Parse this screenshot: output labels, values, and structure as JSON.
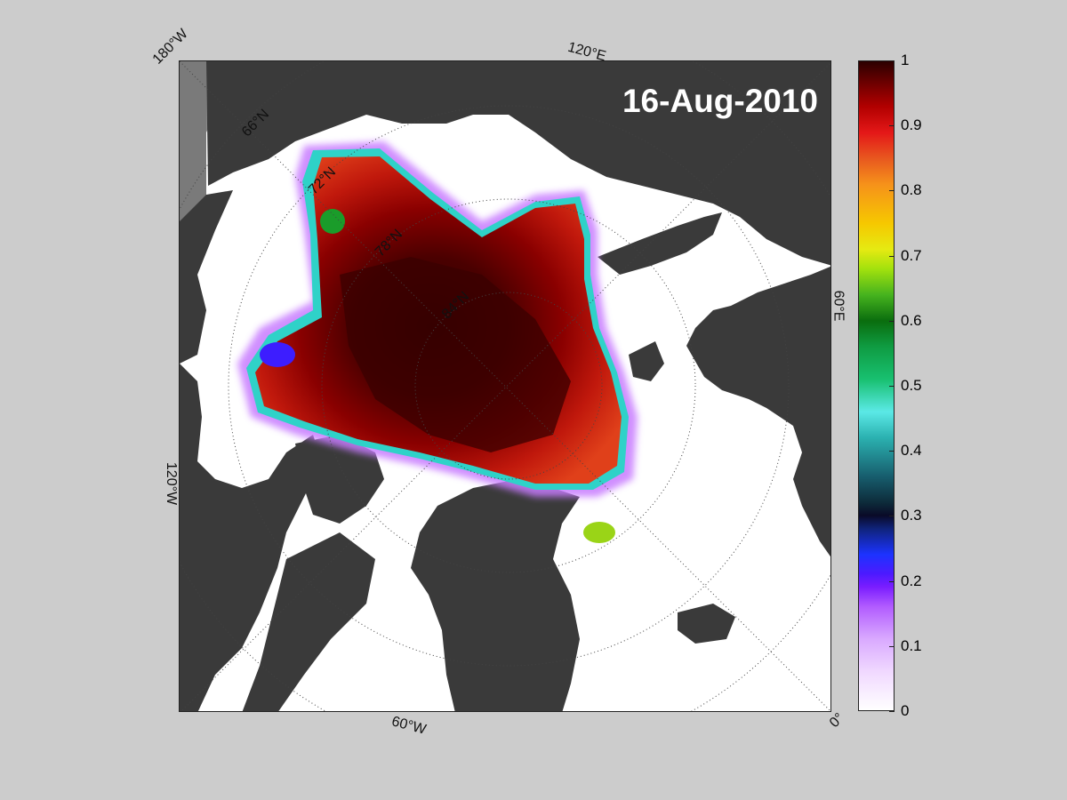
{
  "map": {
    "date_label": "16-Aug-2010",
    "graticule_labels": {
      "lon_180w": "180°W",
      "lon_120e": "120°E",
      "lon_60e": "60°E",
      "lon_120w": "120°W",
      "lon_60w": "60°W",
      "lon_0": "0°",
      "lat_66n": "66°N",
      "lat_72n": "72°N",
      "lat_78n": "78°N",
      "lat_84n": "84°N"
    },
    "colors": {
      "ocean": "#ffffff",
      "land": "#3a3a3a",
      "outside_domain": "#8a8a8a",
      "background": "#cccccc",
      "high_concentration": "#7a0000"
    }
  },
  "colorbar": {
    "ticks": [
      "0",
      "0.1",
      "0.2",
      "0.3",
      "0.4",
      "0.5",
      "0.6",
      "0.7",
      "0.8",
      "0.9",
      "1"
    ],
    "range": [
      0,
      1
    ]
  }
}
